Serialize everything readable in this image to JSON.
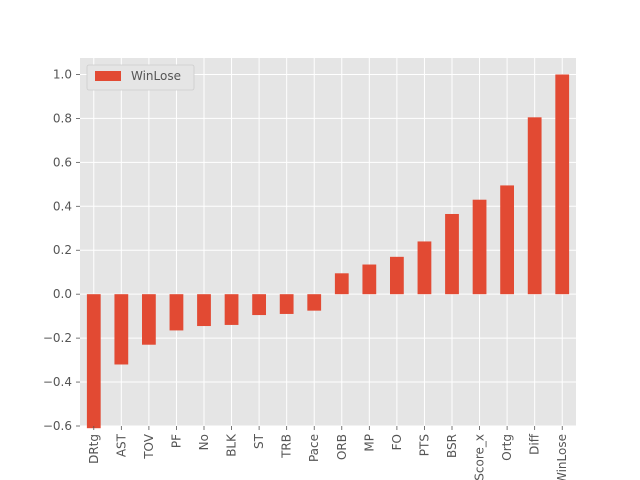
{
  "chart_data": {
    "type": "bar",
    "categories": [
      "DRtg",
      "AST",
      "TOV",
      "PF",
      "No",
      "BLK",
      "ST",
      "TRB",
      "Pace",
      "ORB",
      "MP",
      "FO",
      "PTS",
      "BSR",
      "Score_x",
      "Ortg",
      "Diff",
      "WinLose"
    ],
    "series": [
      {
        "name": "WinLose",
        "values": [
          -0.61,
          -0.32,
          -0.23,
          -0.165,
          -0.145,
          -0.14,
          -0.095,
          -0.09,
          -0.075,
          0.095,
          0.135,
          0.17,
          0.24,
          0.365,
          0.43,
          0.495,
          0.805,
          1.0
        ]
      }
    ],
    "yticks": [
      "−0.6",
      "−0.4",
      "−0.2",
      "0.0",
      "0.2",
      "0.4",
      "0.6",
      "0.8",
      "1.0"
    ],
    "ylim": [
      -0.6,
      1.075
    ],
    "grid": true,
    "legend": "top-left",
    "colors": {
      "bar": "#E24A33",
      "background": "#E5E5E5",
      "grid": "#FFFFFF",
      "text": "#555555"
    }
  }
}
